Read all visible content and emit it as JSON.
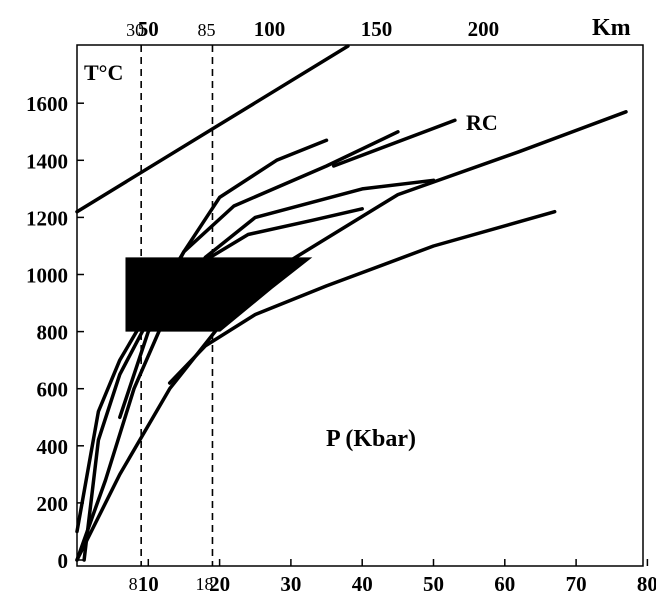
{
  "chart_data": {
    "type": "line",
    "top_axis_unit": "Km",
    "y_axis_title": "T°C",
    "inner_label": "P (Kbar)",
    "curve_label": "RC",
    "x_range": [
      0,
      80
    ],
    "y_range": [
      0,
      1800
    ],
    "x_ticks": [
      10,
      20,
      30,
      40,
      50,
      60,
      70,
      80
    ],
    "y_ticks": [
      0,
      200,
      400,
      600,
      800,
      1000,
      1200,
      1400,
      1600
    ],
    "top_ticks": [
      {
        "label": "50",
        "x": 10
      },
      {
        "label": "100",
        "x": 27
      },
      {
        "label": "150",
        "x": 42
      },
      {
        "label": "200",
        "x": 57
      }
    ],
    "dashed_lines": [
      {
        "x": 9,
        "bottom_label": "8",
        "top_label": "30"
      },
      {
        "x": 19,
        "top_label": "85",
        "bottom_label": "18"
      }
    ],
    "box": {
      "x": [
        6.8,
        33
      ],
      "y": [
        800,
        1060
      ]
    },
    "series": [
      {
        "points": [
          [
            0,
            1220
          ],
          [
            38,
            1800
          ]
        ]
      },
      {
        "points": [
          [
            0,
            100
          ],
          [
            3,
            520
          ],
          [
            6,
            700
          ],
          [
            10,
            870
          ],
          [
            15,
            1080
          ],
          [
            20,
            1270
          ],
          [
            28,
            1400
          ],
          [
            35,
            1470
          ]
        ]
      },
      {
        "points": [
          [
            1,
            0
          ],
          [
            3,
            420
          ],
          [
            6,
            650
          ],
          [
            10,
            840
          ],
          [
            15,
            1080
          ],
          [
            22,
            1240
          ],
          [
            35,
            1380
          ],
          [
            45,
            1500
          ]
        ]
      },
      {
        "points": [
          [
            0,
            0
          ],
          [
            4,
            280
          ],
          [
            8,
            600
          ],
          [
            12,
            830
          ],
          [
            18,
            1060
          ],
          [
            25,
            1200
          ],
          [
            40,
            1300
          ],
          [
            50,
            1330
          ]
        ]
      },
      {
        "points": [
          [
            6,
            500
          ],
          [
            10,
            800
          ],
          [
            16,
            1020
          ],
          [
            24,
            1140
          ],
          [
            33,
            1190
          ],
          [
            40,
            1230
          ]
        ]
      },
      {
        "points": [
          [
            36,
            1380
          ],
          [
            53,
            1540
          ]
        ]
      },
      {
        "points": [
          [
            0,
            0
          ],
          [
            6,
            300
          ],
          [
            13,
            600
          ],
          [
            20,
            820
          ],
          [
            30,
            1050
          ],
          [
            45,
            1280
          ],
          [
            62,
            1430
          ],
          [
            77,
            1570
          ]
        ]
      },
      {
        "points": [
          [
            13,
            620
          ],
          [
            18,
            750
          ],
          [
            25,
            860
          ],
          [
            35,
            960
          ],
          [
            50,
            1100
          ],
          [
            67,
            1220
          ]
        ]
      }
    ]
  }
}
